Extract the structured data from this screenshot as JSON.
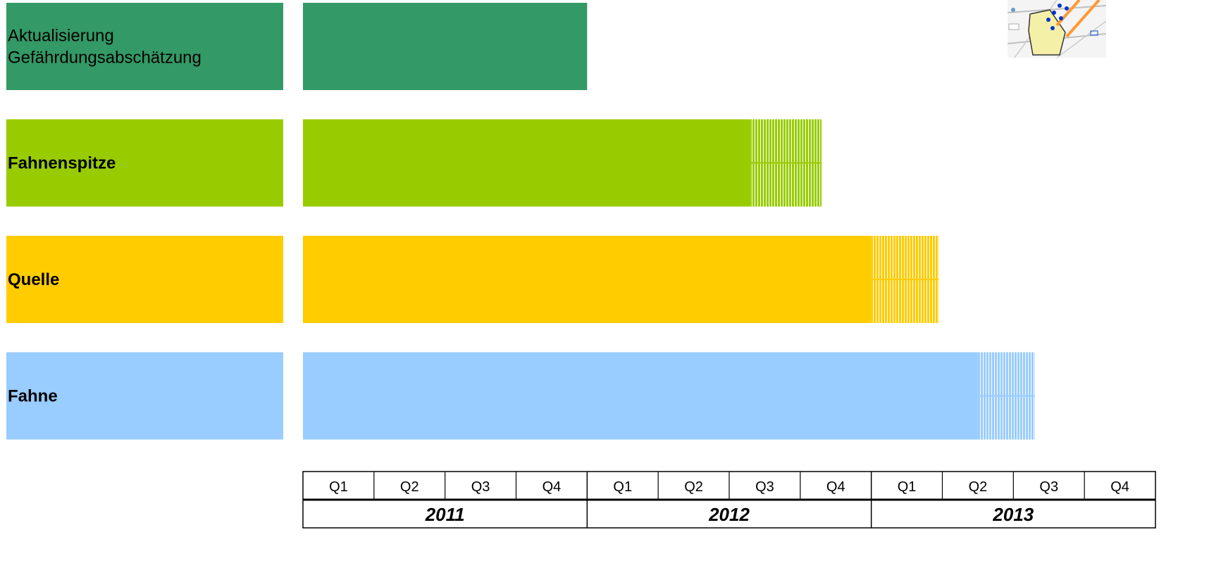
{
  "chart_data": {
    "type": "gantt",
    "axis": {
      "unit": "quarter",
      "start": "2011-Q1",
      "end": "2013-Q4",
      "quarter_labels": [
        "Q1",
        "Q2",
        "Q3",
        "Q4",
        "Q1",
        "Q2",
        "Q3",
        "Q4",
        "Q1",
        "Q2",
        "Q3",
        "Q4"
      ],
      "years": [
        {
          "label": "2011",
          "quarters": 4
        },
        {
          "label": "2012",
          "quarters": 4
        },
        {
          "label": "2013",
          "quarters": 4
        }
      ]
    },
    "tasks": [
      {
        "label_lines": [
          "Aktualisierung",
          "Gefährdungsabschätzung"
        ],
        "bold": false,
        "color": "#339966",
        "start": 0,
        "end": 4,
        "hatch_end": 4
      },
      {
        "label_lines": [
          "Fahnenspitze"
        ],
        "bold": true,
        "color": "#99cc00",
        "start": 0,
        "end": 6.3,
        "hatch_end": 7.3
      },
      {
        "label_lines": [
          "Quelle"
        ],
        "bold": true,
        "color": "#ffcc00",
        "start": 0,
        "end": 8.0,
        "hatch_end": 8.95
      },
      {
        "label_lines": [
          "Fahne"
        ],
        "bold": true,
        "color": "#99ccff",
        "start": 0,
        "end": 9.5,
        "hatch_end": 10.3
      }
    ]
  }
}
